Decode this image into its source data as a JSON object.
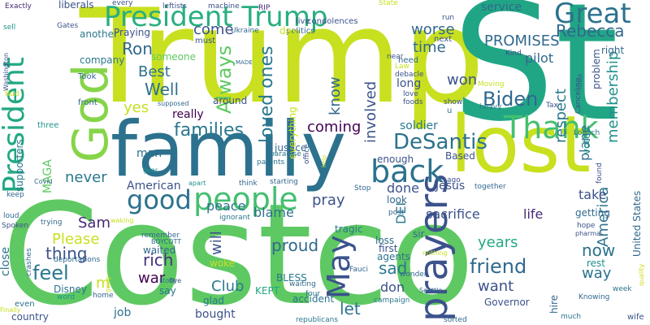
{
  "words": [
    {
      "text": "Costco",
      "color": "#5ec962"
    },
    {
      "text": "Trump",
      "color": "#c8e020"
    },
    {
      "text": "St",
      "color": "#21a685"
    },
    {
      "text": "family",
      "color": "#2c728e"
    },
    {
      "text": "lost",
      "color": "#c8e020"
    },
    {
      "text": "President Trump",
      "color": "#29af7f"
    },
    {
      "text": "God",
      "color": "#86d549"
    },
    {
      "text": "prayers",
      "color": "#3b528b"
    },
    {
      "text": "Great",
      "color": "#2c728e"
    },
    {
      "text": "people",
      "color": "#44bf70"
    },
    {
      "text": "Thank",
      "color": "#44bf70"
    },
    {
      "text": "back",
      "color": "#2c728e"
    },
    {
      "text": "good",
      "color": "#2c728e"
    },
    {
      "text": "President",
      "color": "#22a884"
    },
    {
      "text": "May",
      "color": "#3b528b"
    },
    {
      "text": "DeSantis",
      "color": "#2c728e"
    },
    {
      "text": "Always",
      "color": "#5ec962"
    },
    {
      "text": "loved ones",
      "color": "#2a788e"
    },
    {
      "text": "families",
      "color": "#2a788e"
    },
    {
      "text": "Biden",
      "color": "#31688e"
    },
    {
      "text": "friend",
      "color": "#31688e"
    },
    {
      "text": "PROMISES",
      "color": "#31688e"
    },
    {
      "text": "Rebecca",
      "color": "#31688e"
    },
    {
      "text": "Ron",
      "color": "#31688e"
    },
    {
      "text": "respect",
      "color": "#2a788e"
    },
    {
      "text": "membership",
      "color": "#21918c"
    },
    {
      "text": "America",
      "color": "#2c728e"
    },
    {
      "text": "come",
      "color": "#3b528b"
    },
    {
      "text": "worse",
      "color": "#31688e"
    },
    {
      "text": "time",
      "color": "#31688e"
    },
    {
      "text": "know",
      "color": "#31688e"
    },
    {
      "text": "involved",
      "color": "#3b528b"
    },
    {
      "text": "won",
      "color": "#3b528b"
    },
    {
      "text": "coming",
      "color": "#440154"
    },
    {
      "text": "pilot",
      "color": "#31688e"
    },
    {
      "text": "Best",
      "color": "#2c728e"
    },
    {
      "text": "Well",
      "color": "#2c728e"
    },
    {
      "text": "pray",
      "color": "#3b528b"
    },
    {
      "text": "blame",
      "color": "#2c728e"
    },
    {
      "text": "peace",
      "color": "#2c728e"
    },
    {
      "text": "Sam",
      "color": "#482878"
    },
    {
      "text": "Please",
      "color": "#c8e020"
    },
    {
      "text": "thing",
      "color": "#3b528b"
    },
    {
      "text": "feel",
      "color": "#2a788e"
    },
    {
      "text": "will",
      "color": "#3b528b"
    },
    {
      "text": "proud",
      "color": "#31688e"
    },
    {
      "text": "rich",
      "color": "#46327e"
    },
    {
      "text": "war",
      "color": "#440154"
    },
    {
      "text": "sad",
      "color": "#2a788e"
    },
    {
      "text": "let",
      "color": "#2c728e"
    },
    {
      "text": "Club",
      "color": "#2a788e"
    },
    {
      "text": "want",
      "color": "#3b528b"
    },
    {
      "text": "years",
      "color": "#22a884"
    },
    {
      "text": "now",
      "color": "#2c728e"
    },
    {
      "text": "take",
      "color": "#3b528b"
    },
    {
      "text": "life",
      "color": "#482878"
    },
    {
      "text": "done",
      "color": "#3b528b"
    },
    {
      "text": "DEI",
      "color": "#2a788e"
    },
    {
      "text": "sacrifice",
      "color": "#3b528b"
    },
    {
      "text": "plane",
      "color": "#2c728e"
    },
    {
      "text": "soldier",
      "color": "#2a788e"
    },
    {
      "text": "don",
      "color": "#3b528b"
    },
    {
      "text": "MAGA",
      "color": "#5ec962"
    },
    {
      "text": "yes",
      "color": "#c8e020"
    },
    {
      "text": "never",
      "color": "#2a788e"
    },
    {
      "text": "American",
      "color": "#3b528b"
    },
    {
      "text": "man",
      "color": "#2c728e"
    },
    {
      "text": "really",
      "color": "#440154"
    },
    {
      "text": "someone",
      "color": "#5ec962"
    },
    {
      "text": "company",
      "color": "#2a788e"
    },
    {
      "text": "another",
      "color": "#2a788e"
    },
    {
      "text": "liberals",
      "color": "#3b528b"
    },
    {
      "text": "service",
      "color": "#31688e"
    },
    {
      "text": "long",
      "color": "#3b528b"
    },
    {
      "text": "way",
      "color": "#2c728e"
    },
    {
      "text": "rest",
      "color": "#21918c"
    },
    {
      "text": "getting",
      "color": "#31688e"
    },
    {
      "text": "Jesus",
      "color": "#3b528b"
    },
    {
      "text": "Based",
      "color": "#3b528b"
    },
    {
      "text": "look",
      "color": "#31688e"
    },
    {
      "text": "first",
      "color": "#3b528b"
    },
    {
      "text": "sir",
      "color": "#31688e"
    },
    {
      "text": "BLESS",
      "color": "#2a788e"
    },
    {
      "text": "Disney",
      "color": "#2c728e"
    },
    {
      "text": "say",
      "color": "#2c728e"
    },
    {
      "text": "job",
      "color": "#2c728e"
    },
    {
      "text": "bought",
      "color": "#3b528b"
    },
    {
      "text": "glad",
      "color": "#2a788e"
    },
    {
      "text": "woke",
      "color": "#c8e020"
    },
    {
      "text": "waited",
      "color": "#31688e"
    },
    {
      "text": "United States",
      "color": "#31688e"
    },
    {
      "text": "hire",
      "color": "#31688e"
    },
    {
      "text": "close",
      "color": "#2c728e"
    },
    {
      "text": "supporters",
      "color": "#2a788e"
    },
    {
      "text": "m",
      "color": "#c8e020"
    },
    {
      "text": "Governor",
      "color": "#3b528b"
    },
    {
      "text": "accident",
      "color": "#2c728e"
    },
    {
      "text": "KEPT",
      "color": "#21a685"
    },
    {
      "text": "tragic",
      "color": "#2a788e"
    },
    {
      "text": "waiting",
      "color": "#31688e"
    },
    {
      "text": "agents",
      "color": "#2c728e"
    },
    {
      "text": "loss",
      "color": "#31688e"
    },
    {
      "text": "right",
      "color": "#31688e"
    },
    {
      "text": "problem",
      "color": "#3b528b"
    },
    {
      "text": "voted",
      "color": "#21918c"
    },
    {
      "text": "enough",
      "color": "#3b528b"
    },
    {
      "text": "justice",
      "color": "#31688e"
    },
    {
      "text": "everything",
      "color": "#c8e020"
    },
    {
      "text": "around",
      "color": "#3b528b"
    },
    {
      "text": "Praying",
      "color": "#3b528b"
    },
    {
      "text": "must",
      "color": "#3b528b"
    },
    {
      "text": "live",
      "color": "#3b528b"
    },
    {
      "text": "next",
      "color": "#3b528b"
    },
    {
      "text": "need",
      "color": "#31688e"
    },
    {
      "text": "condolences",
      "color": "#3b528b"
    },
    {
      "text": "politics",
      "color": "#31688e"
    },
    {
      "text": "day",
      "color": "#c8e020"
    },
    {
      "text": "Took",
      "color": "#31688e"
    },
    {
      "text": "front",
      "color": "#31688e"
    },
    {
      "text": "three",
      "color": "#21918c"
    },
    {
      "text": "Gates",
      "color": "#3b528b"
    },
    {
      "text": "Exactly",
      "color": "#482878"
    },
    {
      "text": "machine",
      "color": "#3b528b"
    },
    {
      "text": "leftists",
      "color": "#3b528b"
    },
    {
      "text": "every",
      "color": "#3b528b"
    },
    {
      "text": "RIP",
      "color": "#482878"
    },
    {
      "text": "Ukraine",
      "color": "#31688e"
    },
    {
      "text": "deportations",
      "color": "#31688e"
    },
    {
      "text": "crashes",
      "color": "#31688e"
    },
    {
      "text": "trying",
      "color": "#31688e"
    },
    {
      "text": "remember",
      "color": "#31688e"
    },
    {
      "text": "ignorant",
      "color": "#2a788e"
    },
    {
      "text": "parents",
      "color": "#2c728e"
    },
    {
      "text": "starting",
      "color": "#31688e"
    },
    {
      "text": "Stop",
      "color": "#31688e"
    },
    {
      "text": "think",
      "color": "#31688e"
    },
    {
      "text": "post",
      "color": "#31688e"
    },
    {
      "text": "wonder",
      "color": "#31688e"
    },
    {
      "text": "four",
      "color": "#2c728e"
    },
    {
      "text": "campaign",
      "color": "#2a788e"
    },
    {
      "text": "republicans",
      "color": "#2a788e"
    },
    {
      "text": "country",
      "color": "#3b528b"
    },
    {
      "text": "even",
      "color": "#2c728e"
    },
    {
      "text": "Finally",
      "color": "#c8e020"
    },
    {
      "text": "word",
      "color": "#21918c"
    },
    {
      "text": "home",
      "color": "#31688e"
    },
    {
      "text": "going",
      "color": "#c8e020"
    },
    {
      "text": "BOYCOTT",
      "color": "#31688e"
    },
    {
      "text": "Fauci",
      "color": "#31688e"
    },
    {
      "text": "Covid",
      "color": "#31688e"
    },
    {
      "text": "Spoken",
      "color": "#3b528b"
    },
    {
      "text": "loud",
      "color": "#31688e"
    },
    {
      "text": "keep",
      "color": "#31688e"
    },
    {
      "text": "much",
      "color": "#2a788e"
    },
    {
      "text": "wife",
      "color": "#3b528b"
    },
    {
      "text": "sorted",
      "color": "#31688e"
    },
    {
      "text": "Knowing",
      "color": "#31688e"
    },
    {
      "text": "week",
      "color": "#2c728e"
    },
    {
      "text": "quality",
      "color": "#c8e020"
    },
    {
      "text": "hope",
      "color": "#3b528b"
    },
    {
      "text": "pharma",
      "color": "#3b528b"
    },
    {
      "text": "found",
      "color": "#3b528b"
    },
    {
      "text": "together",
      "color": "#31688e"
    },
    {
      "text": "ago",
      "color": "#3b528b"
    },
    {
      "text": "Lobach",
      "color": "#2c728e"
    },
    {
      "text": "Tax",
      "color": "#3b528b"
    },
    {
      "text": "heavy",
      "color": "#2a788e"
    },
    {
      "text": "love",
      "color": "#3b528b"
    },
    {
      "text": "foods",
      "color": "#3b528b"
    },
    {
      "text": "show",
      "color": "#3b528b"
    },
    {
      "text": "debacle",
      "color": "#3b528b"
    },
    {
      "text": "Law",
      "color": "#c8e020"
    },
    {
      "text": "Kind",
      "color": "#3b528b"
    },
    {
      "text": "Canceling",
      "color": "#3b528b"
    },
    {
      "text": "idea",
      "color": "#31688e"
    },
    {
      "text": "Moving",
      "color": "#c8e020"
    },
    {
      "text": "supposed",
      "color": "#31688e"
    },
    {
      "text": "nothing",
      "color": "#c8e020"
    },
    {
      "text": "Seattle",
      "color": "#31688e"
    },
    {
      "text": "Washington",
      "color": "#3b528b"
    },
    {
      "text": "sell",
      "color": "#21918c"
    },
    {
      "text": "Bud",
      "color": "#c8e020"
    },
    {
      "text": "run",
      "color": "#3b528b"
    },
    {
      "text": "State",
      "color": "#c8e020"
    },
    {
      "text": "near",
      "color": "#3b528b"
    },
    {
      "text": "MADE",
      "color": "#31688e"
    },
    {
      "text": "office",
      "color": "#3b528b"
    },
    {
      "text": "stock",
      "color": "#2a788e"
    },
    {
      "text": "paradise",
      "color": "#2c728e"
    },
    {
      "text": "waking",
      "color": "#c8e020"
    },
    {
      "text": "gear",
      "color": "#21918c"
    },
    {
      "text": "apart",
      "color": "#21918c"
    },
    {
      "text": "help",
      "color": "#c8e020"
    },
    {
      "text": "Bye",
      "color": "#3b528b"
    },
    {
      "text": "u",
      "color": "#2c728e"
    }
  ]
}
